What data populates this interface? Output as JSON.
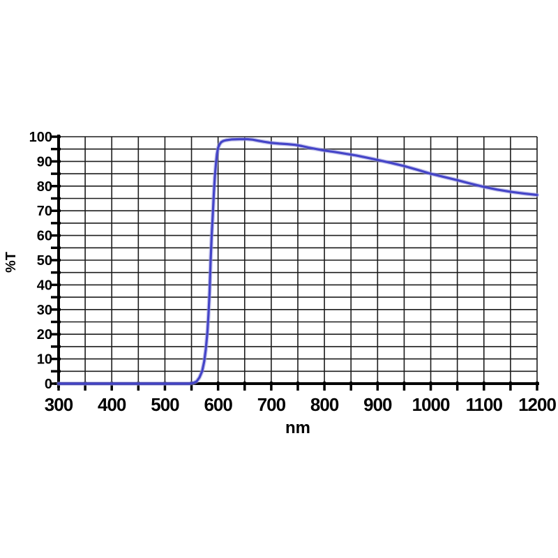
{
  "page": {
    "background": "#ffffff",
    "description": "Spectral transmission curve of a long-pass optical filter"
  },
  "chart_data": {
    "type": "line",
    "title": "",
    "xlabel": "nm",
    "ylabel": "%T",
    "xlim": [
      300,
      1200
    ],
    "ylim": [
      0,
      100
    ],
    "x_label_ticks": [
      300,
      400,
      500,
      600,
      700,
      800,
      900,
      1000,
      1100,
      1200
    ],
    "x_grid_step": 50,
    "y_label_ticks": [
      0,
      10,
      20,
      30,
      40,
      50,
      60,
      70,
      80,
      90,
      100
    ],
    "y_grid_step": 5,
    "grid": "on",
    "legend": "none",
    "line_color": "#4444c8",
    "line_halo_color": "rgba(154,154,222,0.55)",
    "grid_color": "#1c1c1c",
    "axis_color": "#000000",
    "series": [
      {
        "name": "transmission",
        "points": [
          [
            300,
            0
          ],
          [
            350,
            0
          ],
          [
            400,
            0
          ],
          [
            450,
            0
          ],
          [
            500,
            0
          ],
          [
            530,
            0
          ],
          [
            545,
            0
          ],
          [
            552,
            0.2
          ],
          [
            556,
            0.5
          ],
          [
            560,
            1
          ],
          [
            565,
            2.5
          ],
          [
            570,
            5
          ],
          [
            574,
            9
          ],
          [
            577,
            14
          ],
          [
            580,
            21
          ],
          [
            582,
            28
          ],
          [
            584,
            37
          ],
          [
            586,
            50
          ],
          [
            588,
            60
          ],
          [
            590,
            68
          ],
          [
            592,
            77
          ],
          [
            594,
            84
          ],
          [
            596,
            89
          ],
          [
            598,
            93
          ],
          [
            600,
            95.5
          ],
          [
            603,
            97
          ],
          [
            606,
            97.8
          ],
          [
            610,
            98.3
          ],
          [
            615,
            98.6
          ],
          [
            625,
            98.9
          ],
          [
            640,
            99
          ],
          [
            655,
            99
          ],
          [
            665,
            98.8
          ],
          [
            675,
            98.4
          ],
          [
            685,
            98
          ],
          [
            700,
            97.5
          ],
          [
            715,
            97.2
          ],
          [
            730,
            97
          ],
          [
            745,
            96.7
          ],
          [
            758,
            96.2
          ],
          [
            770,
            95.6
          ],
          [
            785,
            95
          ],
          [
            800,
            94.4
          ],
          [
            820,
            93.8
          ],
          [
            840,
            93.1
          ],
          [
            860,
            92.4
          ],
          [
            880,
            91.5
          ],
          [
            900,
            90.6
          ],
          [
            925,
            89.4
          ],
          [
            950,
            88.1
          ],
          [
            975,
            86.6
          ],
          [
            1000,
            85
          ],
          [
            1025,
            83.7
          ],
          [
            1050,
            82.4
          ],
          [
            1075,
            81
          ],
          [
            1100,
            79.7
          ],
          [
            1125,
            78.6
          ],
          [
            1150,
            77.7
          ],
          [
            1175,
            77
          ],
          [
            1200,
            76.4
          ]
        ]
      }
    ]
  }
}
